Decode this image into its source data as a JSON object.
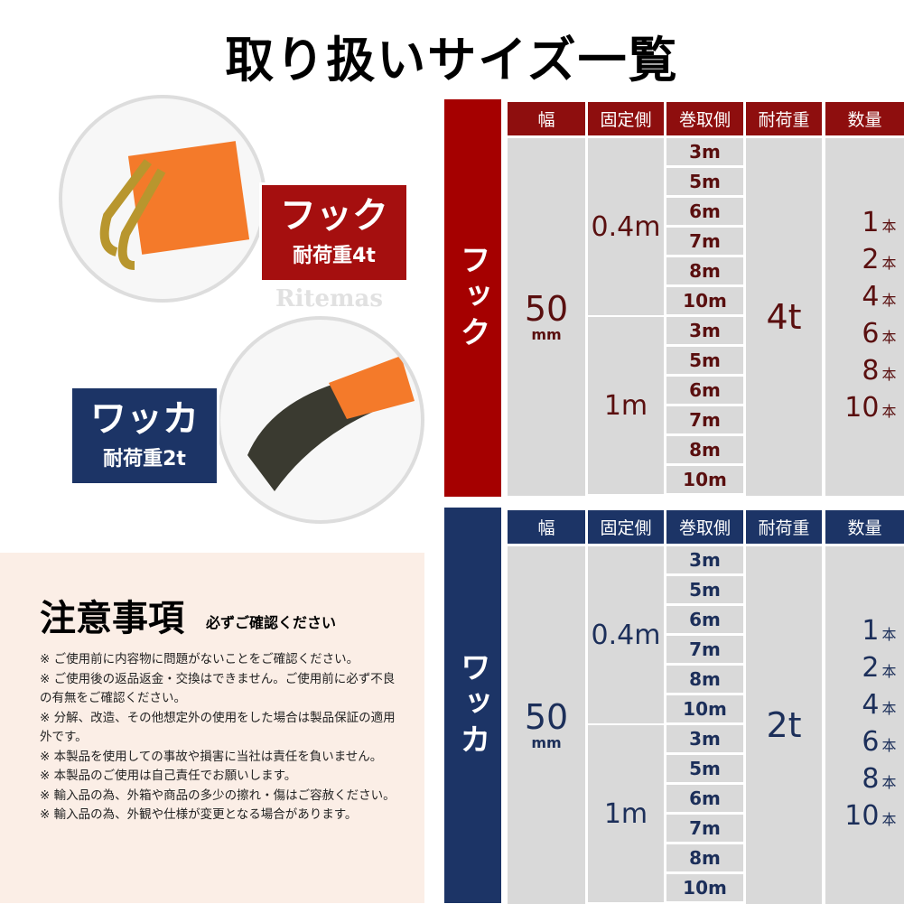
{
  "title": "取り扱いサイズ一覧",
  "watermark": "Ritemas",
  "products": {
    "hook": {
      "name": "フック",
      "load": "耐荷重4t",
      "color": "#a50f0f"
    },
    "wakka": {
      "name": "ワッカ",
      "load": "耐荷重2t",
      "color": "#1c3466"
    }
  },
  "notes": {
    "title": "注意事項",
    "subtitle": "必ずご確認ください",
    "items": [
      "※ ご使用前に内容物に問題がないことをご確認ください。",
      "※ ご使用後の返品返金・交換はできません。ご使用前に必ず不良の有無をご確認ください。",
      "※ 分解、改造、その他想定外の使用をした場合は製品保証の適用外です。",
      "※ 本製品を使用しての事故や損害に当社は責任を負いません。",
      "※ 本製品のご使用は自己責任でお願いします。",
      "※ 輸入品の為、外箱や商品の多少の擦れ・傷はご容赦ください。",
      "※ 輸入品の為、外観や仕様が変更となる場合があります。"
    ]
  },
  "headers": [
    "幅",
    "固定側",
    "巻取側",
    "耐荷重",
    "数量"
  ],
  "tables": [
    {
      "side": "フック",
      "header_color": "#8e0e0e",
      "side_color": "#a50000",
      "text_color": "#5a0f0f",
      "width": "50",
      "width_unit": "mm",
      "fixed": [
        "0.4m",
        "1m"
      ],
      "lengths": [
        "3m",
        "5m",
        "6m",
        "7m",
        "8m",
        "10m"
      ],
      "load": "4t",
      "quantities": [
        "1",
        "2",
        "4",
        "6",
        "8",
        "10"
      ],
      "qty_unit": "本"
    },
    {
      "side": "ワッカ",
      "header_color": "#1c3466",
      "side_color": "#1c3466",
      "text_color": "#1c2f5a",
      "width": "50",
      "width_unit": "mm",
      "fixed": [
        "0.4m",
        "1m"
      ],
      "lengths": [
        "3m",
        "5m",
        "6m",
        "7m",
        "8m",
        "10m"
      ],
      "load": "2t",
      "quantities": [
        "1",
        "2",
        "4",
        "6",
        "8",
        "10"
      ],
      "qty_unit": "本"
    }
  ]
}
